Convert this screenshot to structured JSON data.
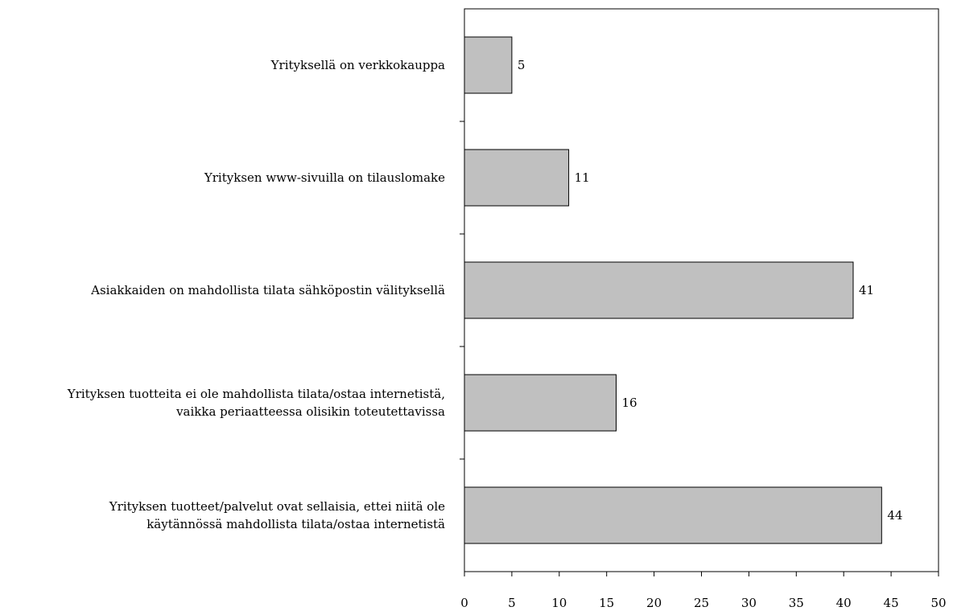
{
  "chart_data": {
    "type": "bar",
    "orientation": "horizontal",
    "categories": [
      [
        "Yrityksellä on verkkokauppa"
      ],
      [
        "Yrityksen www-sivuilla on tilauslomake"
      ],
      [
        "Asiakkaiden on mahdollista tilata sähköpostin välityksellä"
      ],
      [
        "Yrityksen tuotteita ei ole mahdollista tilata/ostaa internetistä,",
        "vaikka periaatteessa olisikin toteutettavissa"
      ],
      [
        "Yrityksen tuotteet/palvelut ovat sellaisia, ettei niitä ole",
        "käytännössä mahdollista tilata/ostaa internetistä"
      ]
    ],
    "values": [
      5,
      11,
      41,
      16,
      44
    ],
    "value_labels": [
      "5",
      "11",
      "41",
      "16",
      "44"
    ],
    "xlim": [
      0,
      50
    ],
    "xticks": [
      0,
      5,
      10,
      15,
      20,
      25,
      30,
      35,
      40,
      45,
      50
    ],
    "xtick_labels": [
      "0",
      "5",
      "10",
      "15",
      "20",
      "25",
      "30",
      "35",
      "40",
      "45",
      "50"
    ],
    "title": "",
    "xlabel": "",
    "ylabel": "",
    "grid": false,
    "legend": "none",
    "colors": {
      "bar_fill": "#c0c0c0",
      "bar_stroke": "#000000",
      "axis": "#000000",
      "text": "#000000"
    }
  }
}
